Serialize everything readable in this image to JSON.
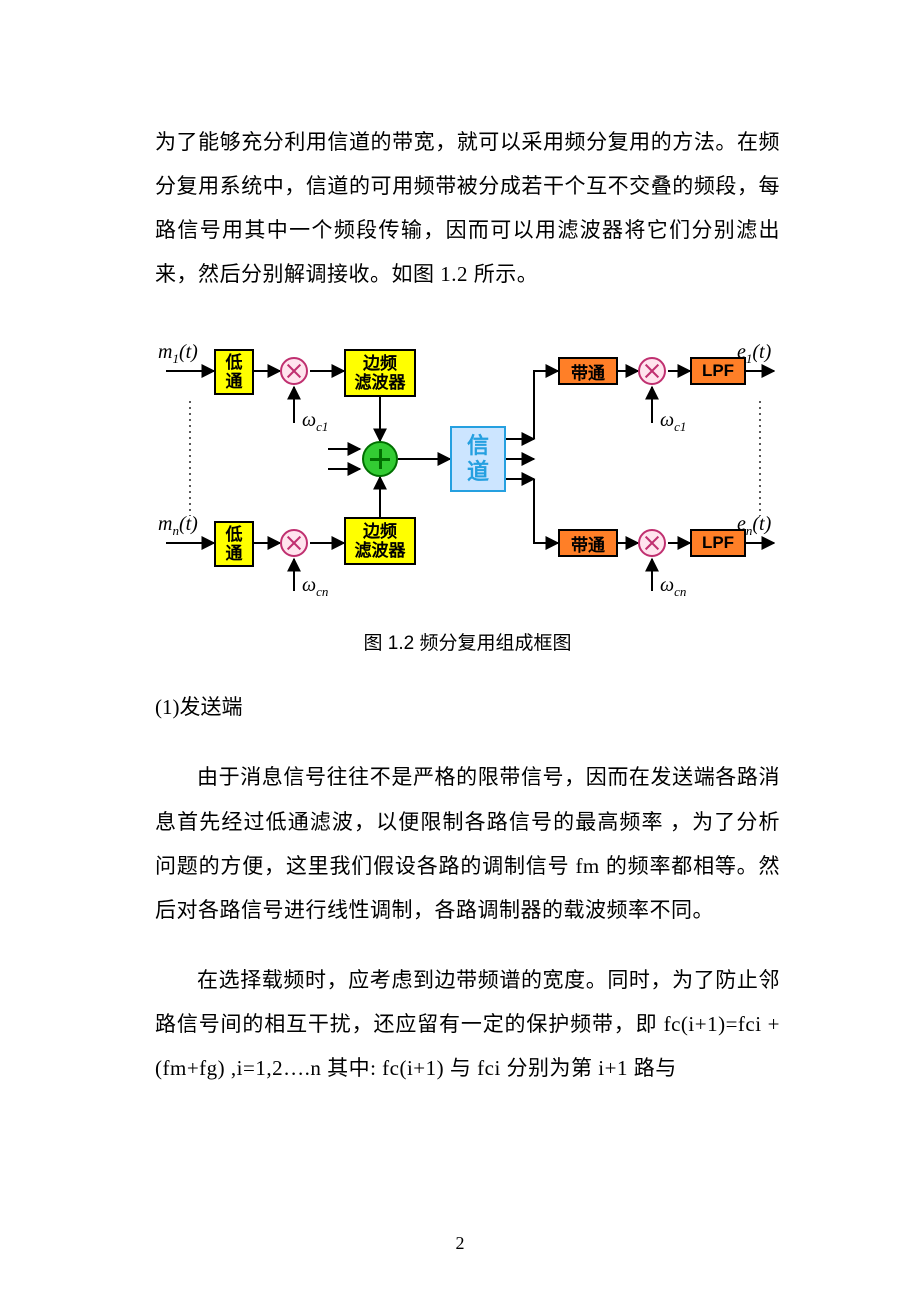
{
  "para_top": "为了能够充分利用信道的带宽，就可以采用频分复用的方法。在频分复用系统中，信道的可用频带被分成若干个互不交叠的频段，每路信号用其中一个频段传输，因而可以用滤波器将它们分别滤出来，然后分别解调接收。如图 1.2 所示。",
  "caption": "图 1.2 频分复用组成框图",
  "section1": "(1)发送端",
  "para2": "由于消息信号往往不是严格的限带信号，因而在发送端各路消息首先经过低通滤波，以便限制各路信号的最高频率 ，为了分析问题的方便，这里我们假设各路的调制信号 fm 的频率都相等。然后对各路信号进行线性调制，各路调制器的载波频率不同。",
  "para3": "在选择载频时，应考虑到边带频谱的宽度。同时，为了防止邻路信号间的相互干扰，还应留有一定的保护频带，即 fc(i+1)=fci +(fm+fg) ,i=1,2….n  其中: fc(i+1) 与 fci 分别为第 i+1 路与",
  "pagenum": "2",
  "diagram": {
    "colors": {
      "yellow": "#ffff00",
      "orange": "#ff7f27",
      "blue_fill": "#cce5ff",
      "blue_border": "#25a0e0",
      "mult_fill": "#ffe4ee",
      "mult_border": "#c03070",
      "sum_fill": "#33cc33",
      "sum_border": "#007000",
      "arrow": "#000000"
    },
    "labels": {
      "m1": "m₁(t)",
      "mn": "mₙ(t)",
      "e1": "e₁(t)",
      "en": "eₙ(t)",
      "wc1": "ω_c1",
      "wcn": "ω_cn"
    },
    "blocks": {
      "lowpass": "低\n通",
      "sbf": "边频\n滤波器",
      "channel": "信\n道",
      "bandpass": "带通",
      "lpf": "LPF"
    }
  }
}
